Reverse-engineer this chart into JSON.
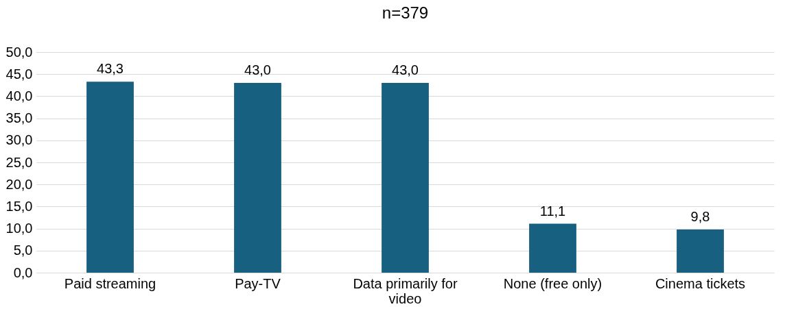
{
  "chart_data": {
    "type": "bar",
    "title": "n=379",
    "categories": [
      "Paid streaming",
      "Pay-TV",
      "Data primarily for video",
      "None (free only)",
      "Cinema tickets"
    ],
    "values": [
      43.3,
      43.0,
      43.0,
      11.1,
      9.8
    ],
    "value_labels": [
      "43,3",
      "43,0",
      "43,0",
      "11,1",
      "9,8"
    ],
    "color": "#17607f",
    "ylim": [
      0,
      50
    ],
    "yticks": [
      {
        "value": 0,
        "label": "0,0"
      },
      {
        "value": 5,
        "label": "5,0"
      },
      {
        "value": 10,
        "label": "10,0"
      },
      {
        "value": 15,
        "label": "15,0"
      },
      {
        "value": 20,
        "label": "20,0"
      },
      {
        "value": 25,
        "label": "25,0"
      },
      {
        "value": 30,
        "label": "30,0"
      },
      {
        "value": 35,
        "label": "35,0"
      },
      {
        "value": 40,
        "label": "40,0"
      },
      {
        "value": 45,
        "label": "45,0"
      },
      {
        "value": 50,
        "label": "50,0"
      }
    ],
    "grid": "y"
  }
}
